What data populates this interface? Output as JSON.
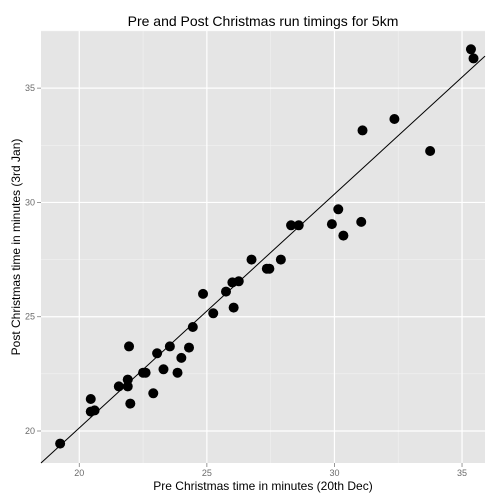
{
  "chart_data": {
    "type": "scatter",
    "title": "Pre and Post Christmas run timings for 5km",
    "xlabel": "Pre Christmas time in minutes (20th Dec)",
    "ylabel": "Post Christmas time in minutes (3rd Jan)",
    "xlim": [
      18.5,
      35.9
    ],
    "ylim": [
      18.6,
      37.5
    ],
    "xticks": [
      {
        "value": 20,
        "label": "20"
      },
      {
        "value": 25,
        "label": "25"
      },
      {
        "value": 30,
        "label": "30"
      },
      {
        "value": 35,
        "label": "35"
      }
    ],
    "yticks": [
      {
        "value": 20,
        "label": "20"
      },
      {
        "value": 25,
        "label": "25"
      },
      {
        "value": 30,
        "label": "30"
      },
      {
        "value": 35,
        "label": "35"
      }
    ],
    "grid": true,
    "legend": "none",
    "points": [
      {
        "x": 19.25,
        "y": 19.45
      },
      {
        "x": 20.45,
        "y": 20.85
      },
      {
        "x": 20.45,
        "y": 21.4
      },
      {
        "x": 20.6,
        "y": 20.9
      },
      {
        "x": 21.55,
        "y": 21.95
      },
      {
        "x": 21.9,
        "y": 21.95
      },
      {
        "x": 21.9,
        "y": 22.25
      },
      {
        "x": 21.95,
        "y": 23.7
      },
      {
        "x": 22.0,
        "y": 21.2
      },
      {
        "x": 22.5,
        "y": 22.55
      },
      {
        "x": 22.6,
        "y": 22.55
      },
      {
        "x": 22.9,
        "y": 21.65
      },
      {
        "x": 23.05,
        "y": 23.4
      },
      {
        "x": 23.3,
        "y": 22.7
      },
      {
        "x": 23.55,
        "y": 23.7
      },
      {
        "x": 23.85,
        "y": 22.55
      },
      {
        "x": 24.0,
        "y": 23.2
      },
      {
        "x": 24.3,
        "y": 23.65
      },
      {
        "x": 24.45,
        "y": 24.55
      },
      {
        "x": 24.85,
        "y": 26.0
      },
      {
        "x": 25.25,
        "y": 25.15
      },
      {
        "x": 25.75,
        "y": 26.1
      },
      {
        "x": 26.0,
        "y": 26.5
      },
      {
        "x": 26.05,
        "y": 25.4
      },
      {
        "x": 26.25,
        "y": 26.55
      },
      {
        "x": 26.75,
        "y": 27.5
      },
      {
        "x": 27.35,
        "y": 27.1
      },
      {
        "x": 27.45,
        "y": 27.1
      },
      {
        "x": 27.9,
        "y": 27.5
      },
      {
        "x": 28.3,
        "y": 29.0
      },
      {
        "x": 28.6,
        "y": 29.0
      },
      {
        "x": 29.9,
        "y": 29.05
      },
      {
        "x": 30.15,
        "y": 29.7
      },
      {
        "x": 30.35,
        "y": 28.55
      },
      {
        "x": 31.05,
        "y": 29.15
      },
      {
        "x": 31.1,
        "y": 33.15
      },
      {
        "x": 32.35,
        "y": 33.65
      },
      {
        "x": 33.75,
        "y": 32.25
      },
      {
        "x": 35.35,
        "y": 36.7
      },
      {
        "x": 35.45,
        "y": 36.3
      }
    ],
    "reference_line": {
      "x": [
        18.5,
        35.9
      ],
      "y": [
        18.4,
        36.4
      ]
    }
  }
}
